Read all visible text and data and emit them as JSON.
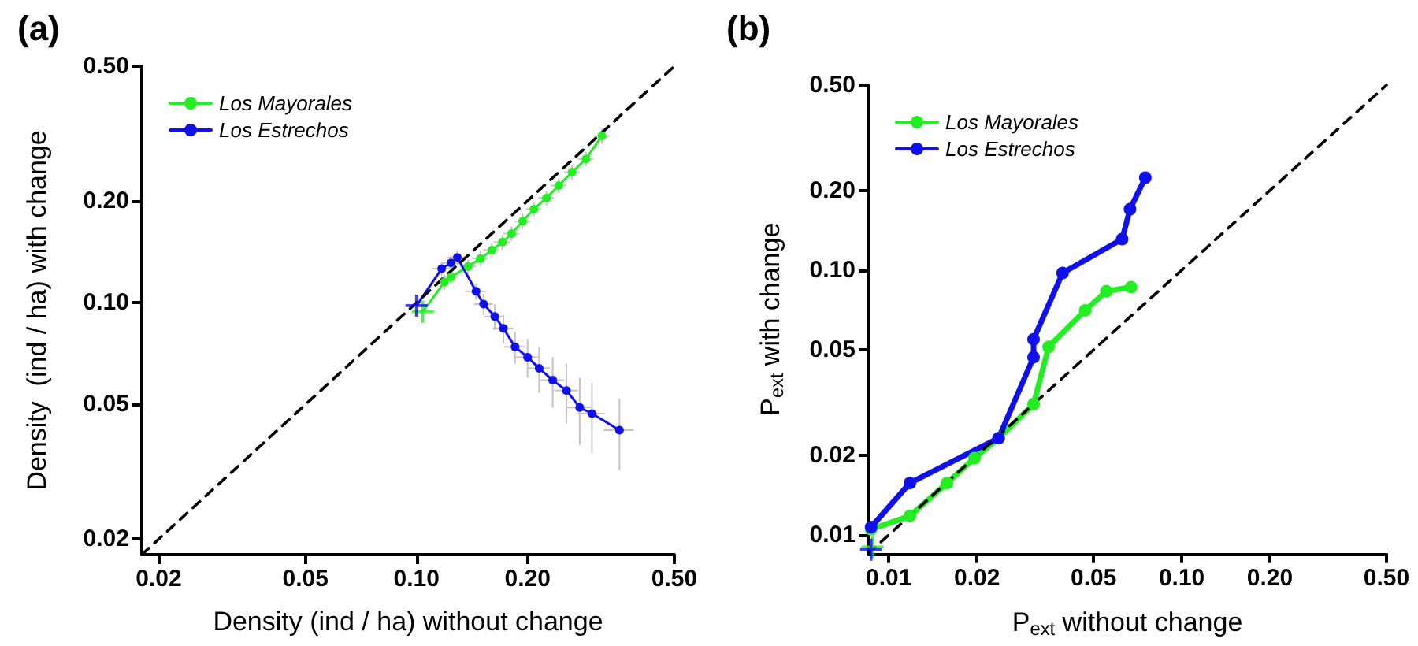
{
  "chart_data": [
    {
      "type": "line",
      "title": "(a)",
      "xlabel": "Density (ind / ha) without change",
      "ylabel": "Density  (ind / ha) with change",
      "log": "xy",
      "grid": false,
      "legend": "top left",
      "xlim": [
        0.018,
        0.5
      ],
      "ylim": [
        0.018,
        0.5
      ],
      "xticks": [
        0.02,
        0.05,
        {
          "value": 0.1,
          "label": "0.10"
        },
        {
          "value": 0.2,
          "label": "0.20"
        },
        {
          "value": 0.5,
          "label": "0.50"
        }
      ],
      "yticks": [
        0.02,
        0.05,
        {
          "value": 0.1,
          "label": "0.10"
        },
        {
          "value": 0.2,
          "label": "0.20"
        },
        {
          "value": 0.5,
          "label": "0.50"
        }
      ],
      "series": [
        {
          "name": "Los Mayorales",
          "color": "#22ee22",
          "type": "line",
          "marker": "circle",
          "x": [
            0.104,
            0.119,
            0.124,
            0.138,
            0.149,
            0.16,
            0.171,
            0.181,
            0.194,
            0.208,
            0.225,
            0.243,
            0.264,
            0.288,
            0.318
          ],
          "values": [
            0.094,
            0.115,
            0.119,
            0.128,
            0.135,
            0.143,
            0.151,
            0.16,
            0.174,
            0.189,
            0.204,
            0.222,
            0.243,
            0.266,
            0.311
          ],
          "xerrors": [
            null,
            0.006,
            0.006,
            0.007,
            0.007,
            0.008,
            0.009,
            0.009,
            0.01,
            0.01,
            0.011,
            0.012,
            0.013,
            0.014,
            0.016
          ],
          "errors": [
            null,
            0.006,
            0.006,
            0.006,
            0.007,
            0.007,
            0.008,
            0.008,
            0.009,
            0.009,
            0.01,
            0.011,
            0.012,
            0.013,
            0.016
          ]
        },
        {
          "name": "Los Estrechos",
          "color": "#1010ee",
          "type": "line",
          "marker": "circle",
          "x": [
            0.1,
            0.117,
            0.124,
            0.129,
            0.145,
            0.152,
            0.163,
            0.172,
            0.185,
            0.2,
            0.215,
            0.234,
            0.255,
            0.277,
            0.299,
            0.355
          ],
          "values": [
            0.098,
            0.126,
            0.131,
            0.136,
            0.108,
            0.099,
            0.091,
            0.084,
            0.074,
            0.069,
            0.064,
            0.059,
            0.055,
            0.049,
            0.047,
            0.042
          ],
          "xerrors": [
            null,
            0.007,
            0.007,
            0.008,
            0.009,
            0.009,
            0.01,
            0.011,
            0.012,
            0.014,
            0.015,
            0.017,
            0.019,
            0.022,
            0.025,
            0.033
          ],
          "errors": [
            null,
            0.006,
            0.007,
            0.007,
            0.006,
            0.007,
            0.008,
            0.008,
            0.008,
            0.009,
            0.01,
            0.01,
            0.011,
            0.011,
            0.011,
            0.01
          ]
        },
        {
          "type": "scatter",
          "marker": "cross",
          "color": "#22ee22",
          "x": [
            0.104
          ],
          "values": [
            0.094
          ]
        },
        {
          "type": "scatter",
          "marker": "cross",
          "color": "#1010ee",
          "x": [
            0.1
          ],
          "values": [
            0.098
          ]
        },
        {
          "type": "line",
          "marker": "none",
          "line_style": "dashed",
          "color": "#000000",
          "x": [
            0.018,
            0.5
          ],
          "values": [
            0.018,
            0.5
          ]
        }
      ]
    },
    {
      "type": "line",
      "title": "(b)",
      "xlabel": "P$_{ext}$ without change",
      "ylabel": "P$_{ext}$ with change",
      "log": "xy",
      "grid": false,
      "legend": "top left",
      "xlim": [
        0.0085,
        0.5
      ],
      "ylim": [
        0.0085,
        0.5
      ],
      "xticks": [
        0.01,
        0.02,
        0.05,
        {
          "value": 0.1,
          "label": "0.10"
        },
        {
          "value": 0.2,
          "label": "0.20"
        },
        {
          "value": 0.5,
          "label": "0.50"
        }
      ],
      "yticks": [
        0.01,
        0.02,
        0.05,
        {
          "value": 0.1,
          "label": "0.10"
        },
        {
          "value": 0.2,
          "label": "0.20"
        },
        {
          "value": 0.5,
          "label": "0.50"
        }
      ],
      "series": [
        {
          "name": "Los Mayorales",
          "color": "#22ee22",
          "type": "line",
          "marker": "circle",
          "x": [
            0.0087,
            0.0118,
            0.0158,
            0.0196,
            0.0237,
            0.0312,
            0.0351,
            0.0468,
            0.0553,
            0.0671
          ],
          "values": [
            0.0105,
            0.0118,
            0.0157,
            0.0195,
            0.0232,
            0.0312,
            0.0513,
            0.0705,
            0.0832,
            0.0863
          ]
        },
        {
          "name": "Los Estrechos",
          "color": "#1010ee",
          "type": "line",
          "marker": "circle",
          "x": [
            0.0087,
            0.0118,
            0.0237,
            0.0312,
            0.0312,
            0.0392,
            0.0626,
            0.0666,
            0.0751
          ],
          "values": [
            0.0107,
            0.0157,
            0.0232,
            0.0469,
            0.0548,
            0.0976,
            0.131,
            0.17,
            0.2235
          ]
        },
        {
          "type": "scatter",
          "marker": "cross",
          "color": "#22ee22",
          "x": [
            0.0088
          ],
          "values": [
            0.009
          ]
        },
        {
          "type": "scatter",
          "marker": "cross",
          "color": "#1010ee",
          "x": [
            0.0087
          ],
          "values": [
            0.0088
          ]
        },
        {
          "type": "line",
          "marker": "none",
          "line_style": "dashed",
          "color": "#000000",
          "x": [
            0.0085,
            0.5
          ],
          "values": [
            0.0085,
            0.5
          ]
        }
      ]
    }
  ]
}
